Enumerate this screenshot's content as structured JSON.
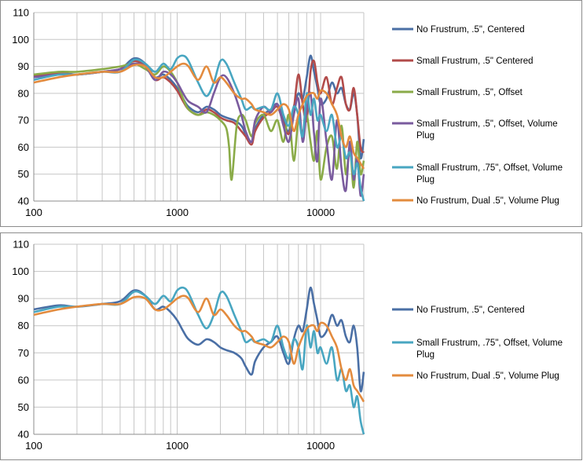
{
  "chart_data": [
    {
      "type": "line",
      "title": "",
      "xlabel": "",
      "ylabel": "",
      "x_scale": "log",
      "xlim": [
        100,
        20000
      ],
      "ylim": [
        40,
        110
      ],
      "yticks": [
        "40",
        "50",
        "60",
        "70",
        "80",
        "90",
        "100",
        "110"
      ],
      "xticks": [
        "100",
        "1000",
        "10000"
      ],
      "grid": true,
      "legend_position": "right",
      "series": [
        {
          "name": "No Frustrum, .5\", Centered",
          "color": "#4a6fa5",
          "lines": [
            "No Frustrum, .5\", Centered"
          ],
          "x": [
            100,
            150,
            200,
            300,
            400,
            500,
            600,
            700,
            800,
            900,
            1000,
            1100,
            1200,
            1400,
            1600,
            1800,
            2000,
            2200,
            2500,
            2800,
            3000,
            3300,
            3500,
            4000,
            4500,
            5000,
            5500,
            6000,
            6500,
            7000,
            7500,
            8000,
            8500,
            9000,
            9500,
            10000,
            11000,
            12000,
            13000,
            14000,
            15000,
            16000,
            17000,
            18000,
            19000,
            20000
          ],
          "y": [
            86,
            87.5,
            87,
            88,
            89,
            93,
            91,
            86,
            87,
            85,
            82,
            78,
            75,
            73,
            75,
            74,
            72,
            71,
            70,
            68,
            65,
            62,
            67,
            72,
            74,
            76,
            70,
            66,
            75,
            80,
            78,
            86,
            94,
            88,
            82,
            76,
            78,
            84,
            80,
            82,
            76,
            74,
            80,
            72,
            56,
            63
          ]
        },
        {
          "name": "Small Frustrum, .5\" Centered",
          "color": "#b24b4a",
          "lines": [
            "Small Frustrum, .5\" Centered"
          ],
          "x": [
            100,
            150,
            200,
            300,
            400,
            500,
            600,
            700,
            800,
            900,
            1000,
            1100,
            1200,
            1400,
            1600,
            1800,
            2000,
            2200,
            2500,
            2800,
            3000,
            3300,
            3500,
            4000,
            4500,
            5000,
            5500,
            6000,
            6500,
            7000,
            7500,
            8000,
            8500,
            9000,
            9500,
            10000,
            11000,
            12000,
            13000,
            14000,
            15000,
            16000,
            17000,
            18000,
            19000,
            20000
          ],
          "y": [
            86.5,
            87.5,
            87,
            88,
            89,
            92,
            90,
            85,
            86,
            84,
            81,
            77,
            74,
            72,
            74,
            73,
            71,
            70,
            69,
            66,
            64,
            61,
            66,
            71,
            73,
            75,
            69,
            65,
            74,
            87,
            76,
            70,
            88,
            92,
            84,
            80,
            86,
            76,
            82,
            86,
            76,
            74,
            82,
            72,
            60,
            58
          ]
        },
        {
          "name": "Small Frustrum, .5\", Offset",
          "color": "#8aab48",
          "lines": [
            "Small Frustrum, .5\", Offset"
          ],
          "x": [
            100,
            150,
            200,
            300,
            400,
            500,
            600,
            700,
            800,
            900,
            1000,
            1100,
            1200,
            1400,
            1600,
            1800,
            2000,
            2200,
            2300,
            2400,
            2600,
            2800,
            3000,
            3300,
            3500,
            4000,
            4500,
            5000,
            5500,
            6000,
            6500,
            7000,
            7500,
            8000,
            8500,
            9000,
            9500,
            10000,
            11000,
            12000,
            13000,
            14000,
            15000,
            16000,
            17000,
            18000,
            19000,
            20000
          ],
          "y": [
            87,
            88,
            88,
            89,
            90,
            91,
            89,
            87,
            90,
            88,
            84,
            78,
            74,
            72,
            73,
            72,
            70,
            67,
            60,
            48,
            68,
            72,
            70,
            64,
            69,
            72,
            66,
            70,
            62,
            72,
            55,
            70,
            65,
            72,
            62,
            55,
            66,
            48,
            60,
            64,
            52,
            68,
            50,
            60,
            45,
            62,
            50,
            55
          ]
        },
        {
          "name": "Small Frustrum, .5\", Offset, Volume Plug",
          "color": "#7a5b9e",
          "lines": [
            "Small Frustrum, .5\", Offset, Volume",
            "Plug"
          ],
          "x": [
            100,
            150,
            200,
            300,
            400,
            500,
            600,
            700,
            800,
            900,
            1000,
            1100,
            1200,
            1400,
            1600,
            1800,
            2000,
            2200,
            2500,
            2800,
            3000,
            3300,
            3500,
            4000,
            4500,
            5000,
            5500,
            6000,
            6500,
            7000,
            7500,
            8000,
            8500,
            9000,
            9500,
            10000,
            11000,
            12000,
            13000,
            14000,
            15000,
            16000,
            17000,
            18000,
            19000,
            20000
          ],
          "y": [
            86,
            87,
            87,
            88,
            89,
            91,
            90,
            85,
            88,
            87,
            84,
            80,
            77,
            75,
            73,
            80,
            86,
            86,
            80,
            72,
            66,
            62,
            70,
            75,
            73,
            76,
            68,
            62,
            72,
            78,
            62,
            74,
            80,
            65,
            55,
            78,
            62,
            48,
            70,
            52,
            44,
            62,
            48,
            56,
            42,
            50
          ]
        },
        {
          "name": "Small Frustrum, .75\", Offset, Volume Plug",
          "color": "#48a6c1",
          "lines": [
            "Small Frustrum, .75\", Offset, Volume",
            "Plug"
          ],
          "x": [
            100,
            150,
            200,
            300,
            400,
            500,
            600,
            700,
            800,
            900,
            1000,
            1100,
            1200,
            1400,
            1600,
            1800,
            2000,
            2200,
            2500,
            2800,
            3000,
            3300,
            3500,
            4000,
            4500,
            5000,
            5500,
            6000,
            6500,
            7000,
            7500,
            8000,
            8500,
            9000,
            9500,
            10000,
            11000,
            12000,
            13000,
            14000,
            15000,
            16000,
            17000,
            18000,
            19000,
            20000
          ],
          "y": [
            85,
            87,
            87,
            88,
            88,
            92.5,
            91,
            88,
            91,
            89,
            93,
            94,
            92,
            84,
            79,
            84,
            92,
            91,
            84,
            78,
            74,
            75,
            74,
            75,
            74,
            80,
            72,
            68,
            75,
            72,
            64,
            80,
            72,
            78,
            70,
            72,
            66,
            72,
            60,
            64,
            56,
            58,
            50,
            54,
            45,
            40
          ]
        },
        {
          "name": "No Frustrum, Dual .5\", Volume Plug",
          "color": "#e38b3e",
          "lines": [
            "No Frustrum, Dual .5\", Volume Plug"
          ],
          "x": [
            100,
            150,
            200,
            300,
            400,
            500,
            600,
            700,
            800,
            900,
            1000,
            1100,
            1200,
            1400,
            1600,
            1800,
            2000,
            2200,
            2500,
            2800,
            3000,
            3300,
            3500,
            4000,
            4500,
            5000,
            5500,
            6000,
            6500,
            7000,
            7500,
            8000,
            8500,
            9000,
            9500,
            10000,
            11000,
            12000,
            13000,
            14000,
            15000,
            16000,
            17000,
            18000,
            19000,
            20000
          ],
          "y": [
            84,
            86,
            87,
            88,
            88,
            90.5,
            90,
            86,
            86,
            88,
            90,
            91,
            90,
            85,
            90,
            84,
            86,
            84,
            80,
            78,
            78,
            76,
            74,
            73,
            72,
            74,
            76,
            74,
            66,
            72,
            76,
            79,
            80,
            80,
            78,
            81,
            80,
            76,
            72,
            64,
            60,
            64,
            58,
            56,
            54,
            52
          ]
        }
      ]
    },
    {
      "type": "line",
      "title": "",
      "xlabel": "",
      "ylabel": "",
      "x_scale": "log",
      "xlim": [
        100,
        20000
      ],
      "ylim": [
        40,
        110
      ],
      "yticks": [
        "40",
        "50",
        "60",
        "70",
        "80",
        "90",
        "100",
        "110"
      ],
      "xticks": [
        "100",
        "1000",
        "10000"
      ],
      "grid": true,
      "legend_position": "right",
      "series": [
        {
          "name": "No Frustrum, .5\", Centered",
          "color": "#4a6fa5",
          "lines": [
            "No Frustrum, .5\", Centered"
          ],
          "x": [
            100,
            150,
            200,
            300,
            400,
            500,
            600,
            700,
            800,
            900,
            1000,
            1100,
            1200,
            1400,
            1600,
            1800,
            2000,
            2200,
            2500,
            2800,
            3000,
            3300,
            3500,
            4000,
            4500,
            5000,
            5500,
            6000,
            6500,
            7000,
            7500,
            8000,
            8500,
            9000,
            9500,
            10000,
            11000,
            12000,
            13000,
            14000,
            15000,
            16000,
            17000,
            18000,
            19000,
            20000
          ],
          "y": [
            86,
            87.5,
            87,
            88,
            89,
            93,
            91,
            86,
            87,
            85,
            82,
            78,
            75,
            73,
            75,
            74,
            72,
            71,
            70,
            68,
            65,
            62,
            67,
            72,
            74,
            76,
            70,
            66,
            75,
            80,
            78,
            86,
            94,
            88,
            82,
            76,
            78,
            84,
            80,
            82,
            76,
            74,
            80,
            72,
            56,
            63
          ]
        },
        {
          "name": "Small Frustrum, .75\", Offset, Volume Plug",
          "color": "#48a6c1",
          "lines": [
            "Small Frustrum, .75\", Offset, Volume",
            "Plug"
          ],
          "x": [
            100,
            150,
            200,
            300,
            400,
            500,
            600,
            700,
            800,
            900,
            1000,
            1100,
            1200,
            1400,
            1600,
            1800,
            2000,
            2200,
            2500,
            2800,
            3000,
            3300,
            3500,
            4000,
            4500,
            5000,
            5500,
            6000,
            6500,
            7000,
            7500,
            8000,
            8500,
            9000,
            9500,
            10000,
            11000,
            12000,
            13000,
            14000,
            15000,
            16000,
            17000,
            18000,
            19000,
            20000
          ],
          "y": [
            85,
            87,
            87,
            88,
            88,
            92.5,
            91,
            88,
            91,
            89,
            93,
            94,
            92,
            84,
            79,
            84,
            92,
            91,
            84,
            78,
            74,
            75,
            74,
            75,
            74,
            80,
            72,
            68,
            75,
            72,
            64,
            80,
            72,
            78,
            70,
            72,
            66,
            72,
            60,
            64,
            56,
            58,
            50,
            54,
            45,
            40
          ]
        },
        {
          "name": "No Frustrum, Dual .5\", Volume Plug",
          "color": "#e38b3e",
          "lines": [
            "No Frustrum, Dual .5\", Volume Plug"
          ],
          "x": [
            100,
            150,
            200,
            300,
            400,
            500,
            600,
            700,
            800,
            900,
            1000,
            1100,
            1200,
            1400,
            1600,
            1800,
            2000,
            2200,
            2500,
            2800,
            3000,
            3300,
            3500,
            4000,
            4500,
            5000,
            5500,
            6000,
            6500,
            7000,
            7500,
            8000,
            8500,
            9000,
            9500,
            10000,
            11000,
            12000,
            13000,
            14000,
            15000,
            16000,
            17000,
            18000,
            19000,
            20000
          ],
          "y": [
            84,
            86,
            87,
            88,
            88,
            90.5,
            90,
            86,
            86,
            88,
            90,
            91,
            90,
            85,
            90,
            84,
            86,
            84,
            80,
            78,
            78,
            76,
            74,
            73,
            72,
            74,
            76,
            74,
            66,
            72,
            76,
            79,
            80,
            80,
            78,
            81,
            80,
            76,
            72,
            64,
            60,
            64,
            58,
            56,
            54,
            52
          ]
        }
      ]
    }
  ]
}
